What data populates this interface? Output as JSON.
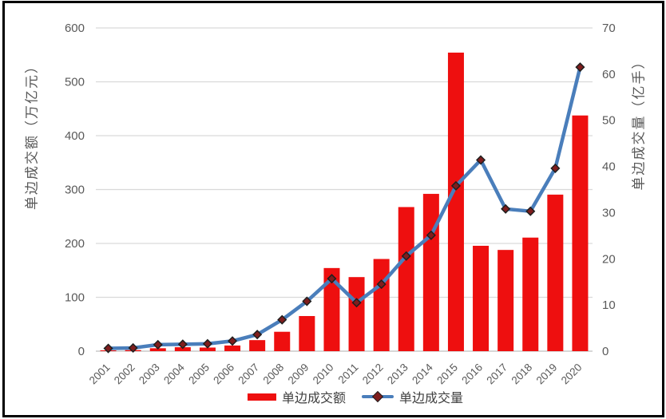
{
  "chart_data": {
    "type": "bar",
    "combo": "bar+line, dual axis",
    "categories": [
      "2001",
      "2002",
      "2003",
      "2004",
      "2005",
      "2006",
      "2007",
      "2008",
      "2009",
      "2010",
      "2011",
      "2012",
      "2013",
      "2014",
      "2015",
      "2016",
      "2017",
      "2018",
      "2019",
      "2020"
    ],
    "series": [
      {
        "name": "单边成交额",
        "chart": "bar",
        "axis": "left",
        "unit": "万亿元",
        "values": [
          1.5,
          2.0,
          5.4,
          7.3,
          6.7,
          10.5,
          20.5,
          36.0,
          65.2,
          154.3,
          137.5,
          171.1,
          267.5,
          292.0,
          554.2,
          195.6,
          187.9,
          210.8,
          290.6,
          437.5
        ]
      },
      {
        "name": "单边成交量",
        "chart": "line",
        "axis": "right",
        "unit": "亿手",
        "marker": "diamond",
        "values": [
          0.6,
          0.7,
          1.4,
          1.5,
          1.6,
          2.2,
          3.6,
          6.8,
          10.8,
          15.7,
          10.5,
          14.5,
          20.6,
          25.1,
          35.8,
          41.4,
          30.8,
          30.3,
          39.6,
          61.5
        ]
      }
    ],
    "left_axis": {
      "title": "单边成交额（万亿元）",
      "min": 0,
      "max": 600,
      "ticks": [
        0,
        100,
        200,
        300,
        400,
        500,
        600
      ]
    },
    "right_axis": {
      "title": "单边成交量（亿手）",
      "min": 0,
      "max": 70,
      "ticks": [
        0,
        10,
        20,
        30,
        40,
        50,
        60,
        70
      ]
    },
    "grid": true,
    "legend_position": "bottom",
    "title": ""
  },
  "legend": {
    "items": [
      {
        "label": "单边成交额",
        "swatch": "bar"
      },
      {
        "label": "单边成交量",
        "swatch": "line-diamond"
      }
    ]
  },
  "colors": {
    "bar": "#ee0f0f",
    "line": "#4a7ebb",
    "marker_fill": "#7f1d1d",
    "marker_outline": "#1f1f1f",
    "grid": "#d9d9d9",
    "axis_line": "#bfbfbf",
    "tick_text": "#595959",
    "legend_text": "#404040",
    "frame": "#000000",
    "background": "#ffffff"
  }
}
